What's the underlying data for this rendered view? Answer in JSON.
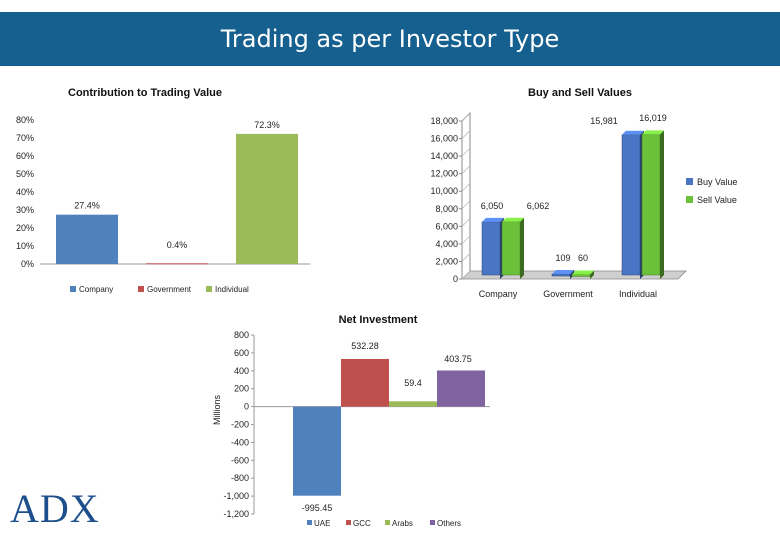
{
  "header": {
    "title": "Trading as per Investor Type"
  },
  "logo": {
    "text": "ADX"
  },
  "colors": {
    "banner": "#15608f",
    "company": "#4f81bd",
    "government": "#c0504d",
    "individual": "#9bbb59",
    "others": "#8064a2",
    "buy": "#4a74c4",
    "sell": "#6cc13a"
  },
  "chart_data": [
    {
      "id": "contribution",
      "type": "bar",
      "title": "Contribution to Trading Value",
      "categories": [
        "Company",
        "Government",
        "Individual"
      ],
      "values": [
        27.4,
        0.4,
        72.3
      ],
      "data_labels": [
        "27.4%",
        "0.4%",
        "72.3%"
      ],
      "ylim": [
        0,
        80
      ],
      "yticks": [
        "0%",
        "10%",
        "20%",
        "30%",
        "40%",
        "50%",
        "60%",
        "70%",
        "80%"
      ],
      "legend": [
        "Company",
        "Government",
        "Individual"
      ],
      "legend_position": "bottom"
    },
    {
      "id": "buysell",
      "type": "bar",
      "title": "Buy and Sell Values",
      "categories": [
        "Company",
        "Government",
        "Individual"
      ],
      "series": [
        {
          "name": "Buy Value",
          "values": [
            6050,
            109,
            15981
          ],
          "labels": [
            "6,050",
            "109",
            "15,981"
          ]
        },
        {
          "name": "Sell Value",
          "values": [
            6062,
            60,
            16019
          ],
          "labels": [
            "6,062",
            "60",
            "16,019"
          ]
        }
      ],
      "ylim": [
        0,
        18000
      ],
      "yticks": [
        "0",
        "2,000",
        "4,000",
        "6,000",
        "8,000",
        "10,000",
        "12,000",
        "14,000",
        "16,000",
        "18,000"
      ],
      "legend_position": "right"
    },
    {
      "id": "netinvestment",
      "type": "bar",
      "title": "Net Investment",
      "ylabel": "Millions",
      "categories": [
        "UAE",
        "GCC",
        "Arabs",
        "Others"
      ],
      "values": [
        -995.45,
        532.28,
        59.4,
        403.75
      ],
      "data_labels": [
        "-995.45",
        "532.28",
        "59.4",
        "403.75"
      ],
      "ylim": [
        -1200,
        800
      ],
      "yticks": [
        "-1,200",
        "-1,000",
        "-800",
        "-600",
        "-400",
        "-200",
        "0",
        "200",
        "400",
        "600",
        "800"
      ],
      "legend": [
        "UAE",
        "GCC",
        "Arabs",
        "Others"
      ],
      "legend_position": "bottom"
    }
  ]
}
